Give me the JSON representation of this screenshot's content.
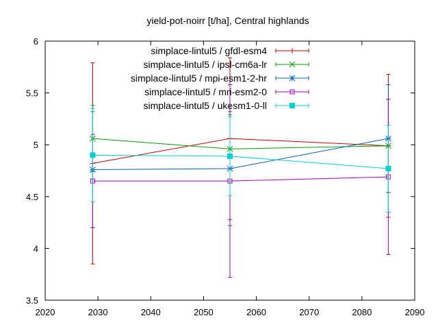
{
  "chart_data": {
    "type": "line",
    "title": "yield-pot-noirr [t/ha], Central highlands",
    "xlabel": "",
    "ylabel": "",
    "xlim": [
      2020,
      2090
    ],
    "ylim": [
      3.5,
      6
    ],
    "x_ticks": [
      2020,
      2030,
      2040,
      2050,
      2060,
      2070,
      2080,
      2090
    ],
    "y_ticks": [
      3.5,
      4,
      4.5,
      5,
      5.5,
      6
    ],
    "x_tick_labels": [
      "2020",
      "2030",
      "2040",
      "2050",
      "2060",
      "2070",
      "2080",
      "2090"
    ],
    "y_tick_labels": [
      "3.5",
      "4",
      "4.5",
      "5",
      "5.5",
      "6"
    ],
    "grid": false,
    "legend_position": "top-right",
    "error_bars": true,
    "x": [
      2029,
      2055,
      2085
    ],
    "series": [
      {
        "name": "simplace-lintul5 / gfdl-esm4",
        "color": "#cc0000",
        "marker": "plus",
        "values": [
          4.82,
          5.06,
          4.99
        ],
        "errors": [
          0.97,
          0.78,
          0.69
        ]
      },
      {
        "name": "simplace-lintul5 / ipsl-cm6a-lr",
        "color": "#00a000",
        "marker": "cross",
        "values": [
          5.06,
          4.96,
          4.99
        ],
        "errors": [
          0.32,
          0.33,
          0.45
        ]
      },
      {
        "name": "simplace-lintul5 / mpi-esm1-2-hr",
        "color": "#0060c0",
        "marker": "star",
        "values": [
          4.76,
          4.77,
          5.06
        ],
        "errors": [
          0.56,
          0.55,
          0.52
        ]
      },
      {
        "name": "simplace-lintul5 / mri-esm2-0",
        "color": "#a000c0",
        "marker": "open-square",
        "values": [
          4.65,
          4.65,
          4.69
        ],
        "errors": [
          0.45,
          0.93,
          0.75
        ]
      },
      {
        "name": "simplace-lintul5 / ukesm1-0-ll",
        "color": "#00d0d0",
        "marker": "filled-square",
        "values": [
          4.9,
          4.89,
          4.77
        ],
        "errors": [
          0.45,
          0.38,
          0.42
        ]
      }
    ]
  }
}
